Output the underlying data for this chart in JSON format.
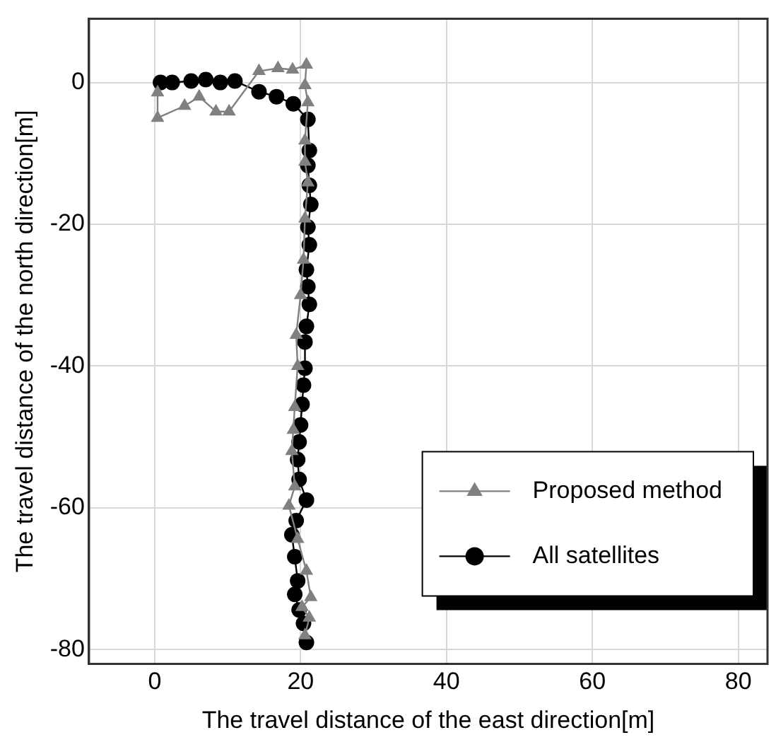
{
  "chart_data": {
    "type": "line",
    "xlabel": "The travel distance of the east direction[m]",
    "ylabel": "The travel distance of the north direction[m]",
    "xlim": [
      -9,
      84
    ],
    "xticks": [
      0,
      20,
      40,
      60,
      80
    ],
    "ylim": [
      -82,
      9
    ],
    "yticks": [
      -80,
      -60,
      -40,
      -20,
      0
    ],
    "grid": true,
    "legend": "bottom right",
    "series": [
      {
        "name": "Proposed method",
        "color": "#808080",
        "marker": "triangle",
        "x": [
          0.4,
          0.4,
          4.1,
          6.1,
          8.4,
          10.2,
          14.3,
          16.9,
          18.9,
          20.8,
          20.6,
          21,
          20.6,
          20.6,
          21,
          20.6,
          20.4,
          20,
          19.4,
          19.6,
          19.2,
          19,
          18.8,
          19.2,
          18.4,
          19.6,
          20.8,
          21.4,
          20.2,
          21.2,
          20.6
        ],
        "values": [
          -1.4,
          -5,
          -3.3,
          -2,
          -4.1,
          -4.1,
          1.6,
          2,
          1.8,
          2.5,
          -0.4,
          -2.8,
          -8.2,
          -11.2,
          -14.1,
          -19.2,
          -25,
          -30,
          -35.6,
          -40,
          -45.8,
          -49,
          -52,
          -57,
          -59.7,
          -64.4,
          -68.9,
          -72.6,
          -74,
          -75.5,
          -78
        ]
      },
      {
        "name": "All satellites",
        "color": "#000000",
        "marker": "circle",
        "x": [
          0.8,
          2.4,
          5,
          7,
          9,
          11,
          14.3,
          16.7,
          19,
          21,
          21.2,
          21,
          21.2,
          21.4,
          21,
          21.2,
          20.8,
          21,
          21.2,
          20.8,
          20.6,
          20.6,
          20.4,
          20.2,
          20,
          19.8,
          19.6,
          19.8,
          20.8,
          19.4,
          18.8,
          19.2,
          19.6,
          19.2,
          19.8,
          20.4,
          20.8
        ],
        "values": [
          0,
          0,
          0.2,
          0.4,
          0,
          0.2,
          -1.3,
          -2,
          -3,
          -5.2,
          -9.6,
          -11.7,
          -14.5,
          -17.2,
          -20.4,
          -22.9,
          -26.4,
          -28.8,
          -31.3,
          -34.4,
          -36.6,
          -40.3,
          -42.7,
          -45.4,
          -48.3,
          -50.7,
          -53.2,
          -56,
          -58.9,
          -61.8,
          -63.8,
          -66.9,
          -70.3,
          -72.2,
          -74.4,
          -76.3,
          -79
        ]
      }
    ]
  }
}
